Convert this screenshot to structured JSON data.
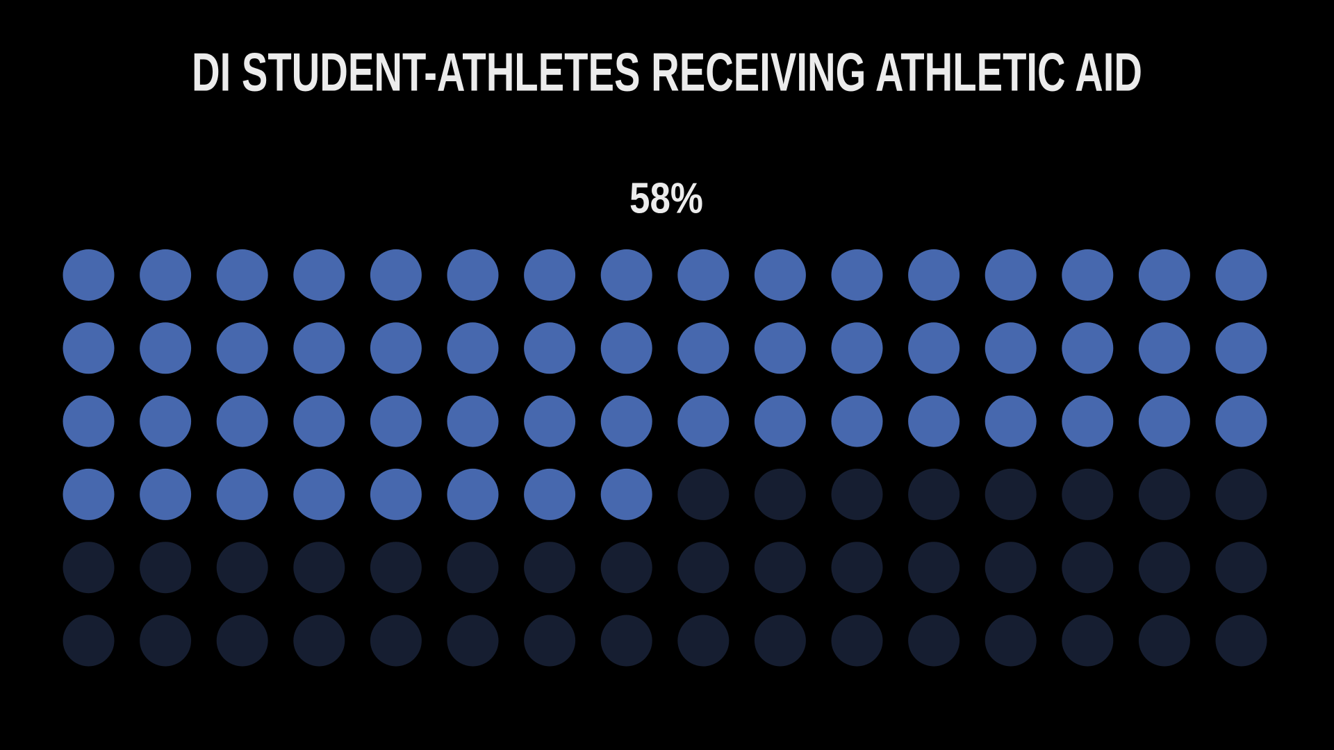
{
  "chart_data": {
    "type": "waffle",
    "title": "DI STUDENT-ATHLETES RECEIVING ATHLETIC AID",
    "values": [
      58
    ],
    "value_labels": [
      "58%"
    ],
    "color": "#4768ae",
    "empty_color": "#161e31"
  }
}
